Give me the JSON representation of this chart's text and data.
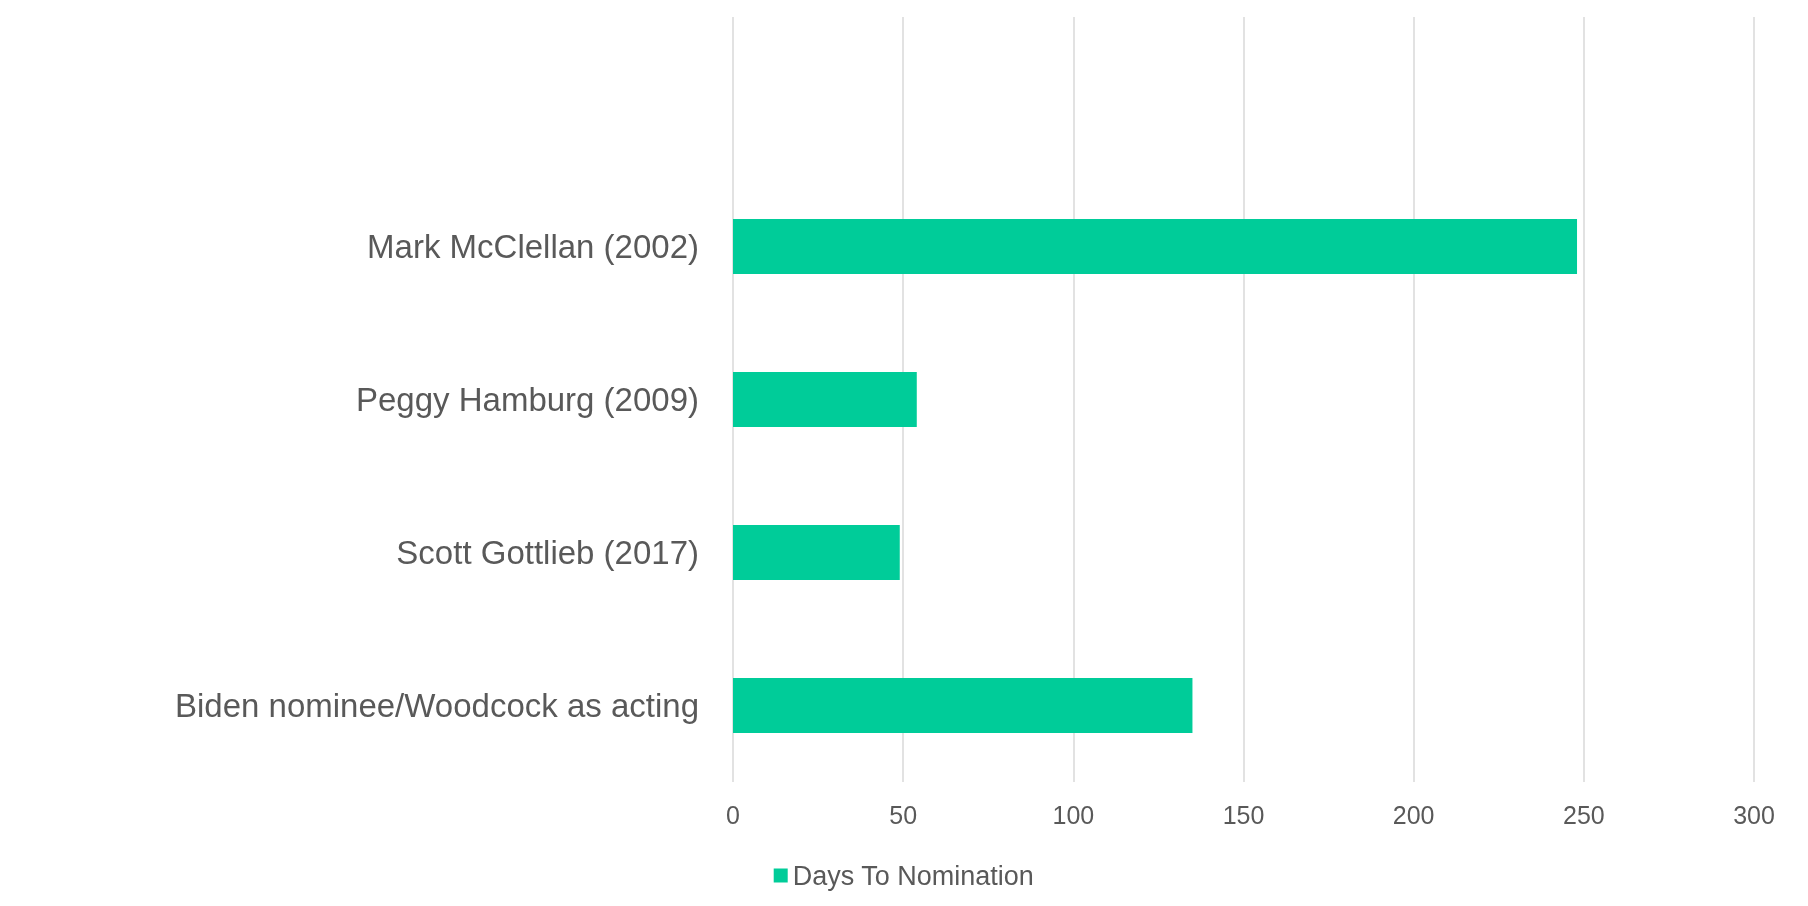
{
  "chart_data": {
    "type": "bar",
    "orientation": "horizontal",
    "categories": [
      null,
      "Mark McClellan (2002)",
      "Peggy Hamburg (2009)",
      "Scott Gottlieb (2017)",
      "Biden nominee/Woodcock as acting"
    ],
    "series": [
      {
        "name": "Days To Nomination",
        "color": "#00cc99",
        "values": [
          null,
          248,
          54,
          49,
          135
        ]
      }
    ],
    "xlim": [
      0,
      300
    ],
    "xticks": [
      0,
      50,
      100,
      150,
      200,
      250,
      300
    ],
    "grid": "x",
    "legend": "bottom"
  }
}
